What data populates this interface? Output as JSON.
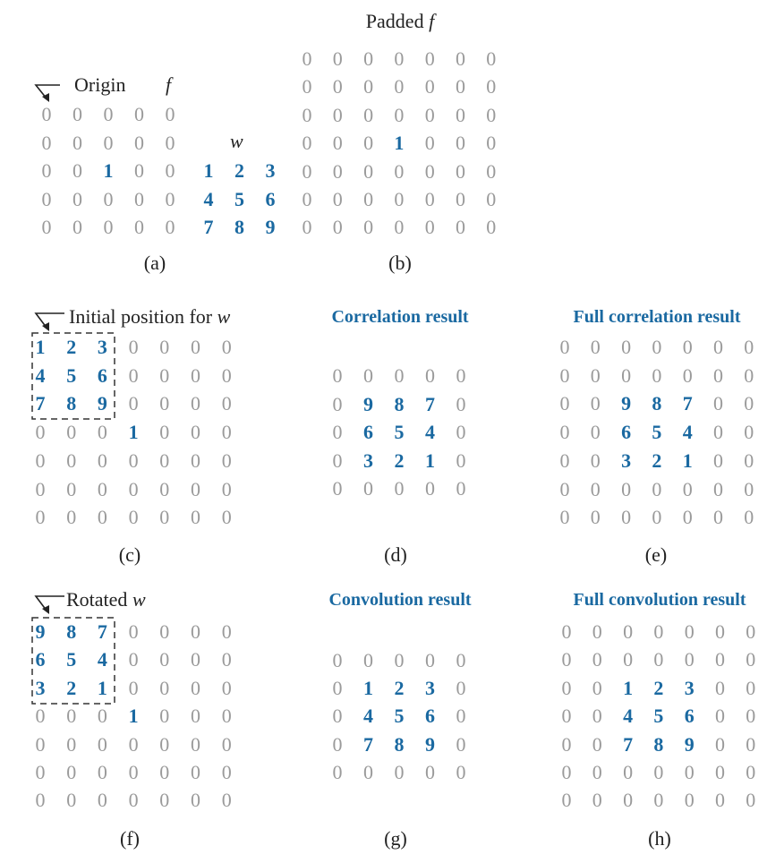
{
  "colors": {
    "highlight": "#1a69a1",
    "zero": "#9a9a9a",
    "text": "#222222"
  },
  "panels": {
    "a": {
      "label": "(a)",
      "origin_text": "Origin",
      "f_symbol": "f",
      "f": [
        [
          0,
          0,
          0,
          0,
          0
        ],
        [
          0,
          0,
          0,
          0,
          0
        ],
        [
          0,
          0,
          1,
          0,
          0
        ],
        [
          0,
          0,
          0,
          0,
          0
        ],
        [
          0,
          0,
          0,
          0,
          0
        ]
      ],
      "w_symbol": "w",
      "w": [
        [
          1,
          2,
          3
        ],
        [
          4,
          5,
          6
        ],
        [
          7,
          8,
          9
        ]
      ]
    },
    "b": {
      "label": "(b)",
      "title": "Padded",
      "title_symbol": "f",
      "grid": [
        [
          0,
          0,
          0,
          0,
          0,
          0,
          0
        ],
        [
          0,
          0,
          0,
          0,
          0,
          0,
          0
        ],
        [
          0,
          0,
          0,
          0,
          0,
          0,
          0
        ],
        [
          0,
          0,
          0,
          1,
          0,
          0,
          0
        ],
        [
          0,
          0,
          0,
          0,
          0,
          0,
          0
        ],
        [
          0,
          0,
          0,
          0,
          0,
          0,
          0
        ],
        [
          0,
          0,
          0,
          0,
          0,
          0,
          0
        ]
      ]
    },
    "c": {
      "label": "(c)",
      "title": "Initial position for",
      "title_symbol": "w",
      "grid": [
        [
          1,
          2,
          3,
          0,
          0,
          0,
          0
        ],
        [
          4,
          5,
          6,
          0,
          0,
          0,
          0
        ],
        [
          7,
          8,
          9,
          0,
          0,
          0,
          0
        ],
        [
          0,
          0,
          0,
          1,
          0,
          0,
          0
        ],
        [
          0,
          0,
          0,
          0,
          0,
          0,
          0
        ],
        [
          0,
          0,
          0,
          0,
          0,
          0,
          0
        ],
        [
          0,
          0,
          0,
          0,
          0,
          0,
          0
        ]
      ]
    },
    "d": {
      "label": "(d)",
      "title": "Correlation result",
      "grid": [
        [
          0,
          0,
          0,
          0,
          0
        ],
        [
          0,
          9,
          8,
          7,
          0
        ],
        [
          0,
          6,
          5,
          4,
          0
        ],
        [
          0,
          3,
          2,
          1,
          0
        ],
        [
          0,
          0,
          0,
          0,
          0
        ]
      ]
    },
    "e": {
      "label": "(e)",
      "title": "Full correlation result",
      "grid": [
        [
          0,
          0,
          0,
          0,
          0,
          0,
          0
        ],
        [
          0,
          0,
          0,
          0,
          0,
          0,
          0
        ],
        [
          0,
          0,
          9,
          8,
          7,
          0,
          0
        ],
        [
          0,
          0,
          6,
          5,
          4,
          0,
          0
        ],
        [
          0,
          0,
          3,
          2,
          1,
          0,
          0
        ],
        [
          0,
          0,
          0,
          0,
          0,
          0,
          0
        ],
        [
          0,
          0,
          0,
          0,
          0,
          0,
          0
        ]
      ]
    },
    "f": {
      "label": "(f)",
      "title": "Rotated",
      "title_symbol": "w",
      "grid": [
        [
          9,
          8,
          7,
          0,
          0,
          0,
          0
        ],
        [
          6,
          5,
          4,
          0,
          0,
          0,
          0
        ],
        [
          3,
          2,
          1,
          0,
          0,
          0,
          0
        ],
        [
          0,
          0,
          0,
          1,
          0,
          0,
          0
        ],
        [
          0,
          0,
          0,
          0,
          0,
          0,
          0
        ],
        [
          0,
          0,
          0,
          0,
          0,
          0,
          0
        ],
        [
          0,
          0,
          0,
          0,
          0,
          0,
          0
        ]
      ]
    },
    "g": {
      "label": "(g)",
      "title": "Convolution result",
      "grid": [
        [
          0,
          0,
          0,
          0,
          0
        ],
        [
          0,
          1,
          2,
          3,
          0
        ],
        [
          0,
          4,
          5,
          6,
          0
        ],
        [
          0,
          7,
          8,
          9,
          0
        ],
        [
          0,
          0,
          0,
          0,
          0
        ]
      ]
    },
    "h": {
      "label": "(h)",
      "title": "Full convolution result",
      "grid": [
        [
          0,
          0,
          0,
          0,
          0,
          0,
          0
        ],
        [
          0,
          0,
          0,
          0,
          0,
          0,
          0
        ],
        [
          0,
          0,
          1,
          2,
          3,
          0,
          0
        ],
        [
          0,
          0,
          4,
          5,
          6,
          0,
          0
        ],
        [
          0,
          0,
          7,
          8,
          9,
          0,
          0
        ],
        [
          0,
          0,
          0,
          0,
          0,
          0,
          0
        ],
        [
          0,
          0,
          0,
          0,
          0,
          0,
          0
        ]
      ]
    }
  }
}
